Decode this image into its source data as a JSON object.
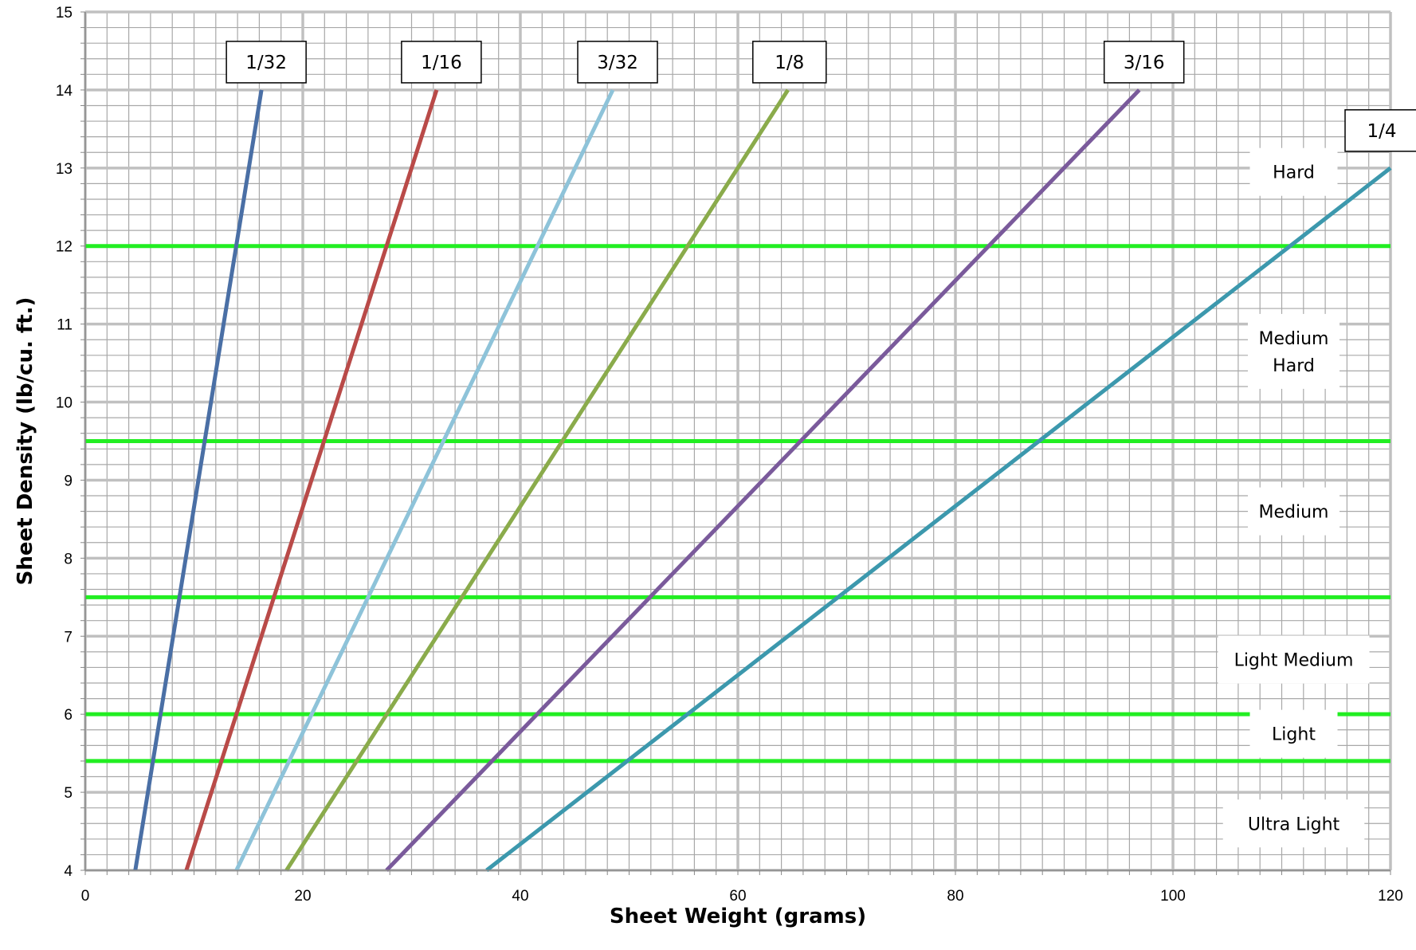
{
  "chart_data": {
    "type": "line",
    "title": "",
    "xlabel": "Sheet Weight (grams)",
    "ylabel": "Sheet Density  (lb/cu. ft.)",
    "xlim": [
      0,
      120
    ],
    "ylim": [
      4,
      15
    ],
    "x_ticks": [
      "0",
      "20",
      "40",
      "60",
      "80",
      "100",
      "120"
    ],
    "y_ticks": [
      "4",
      "5",
      "6",
      "7",
      "8",
      "9",
      "10",
      "11",
      "12",
      "13",
      "14",
      "15"
    ],
    "grid": true,
    "series": [
      {
        "name": "1/32",
        "color": "#4a6fa5",
        "x": [
          4.6,
          16.2
        ],
        "y": [
          4,
          14
        ]
      },
      {
        "name": "1/16",
        "color": "#b94a48",
        "x": [
          9.3,
          32.3
        ],
        "y": [
          4,
          14
        ]
      },
      {
        "name": "3/32",
        "color": "#8ec3d9",
        "x": [
          13.9,
          48.5
        ],
        "y": [
          4,
          14
        ]
      },
      {
        "name": "1/8",
        "color": "#8aab4b",
        "x": [
          18.5,
          64.6
        ],
        "y": [
          4,
          14
        ]
      },
      {
        "name": "3/16",
        "color": "#7a5a9b",
        "x": [
          27.7,
          96.9
        ],
        "y": [
          4,
          14
        ]
      },
      {
        "name": "1/4",
        "color": "#3c98ad",
        "x": [
          36.9,
          120
        ],
        "y": [
          4,
          13
        ]
      }
    ],
    "thresholds": {
      "color": "#22ee22",
      "y": [
        5.4,
        6,
        7.5,
        9.5,
        12
      ]
    },
    "zones": [
      {
        "label": "Ultra Light",
        "y": 4.6
      },
      {
        "label": "Light",
        "y": 5.75
      },
      {
        "label": "Light Medium",
        "y": 6.7
      },
      {
        "label": "Medium",
        "y": 8.6
      },
      {
        "label": "Medium Hard",
        "y": 10.65
      },
      {
        "label": "Hard",
        "y": 12.95
      }
    ]
  }
}
